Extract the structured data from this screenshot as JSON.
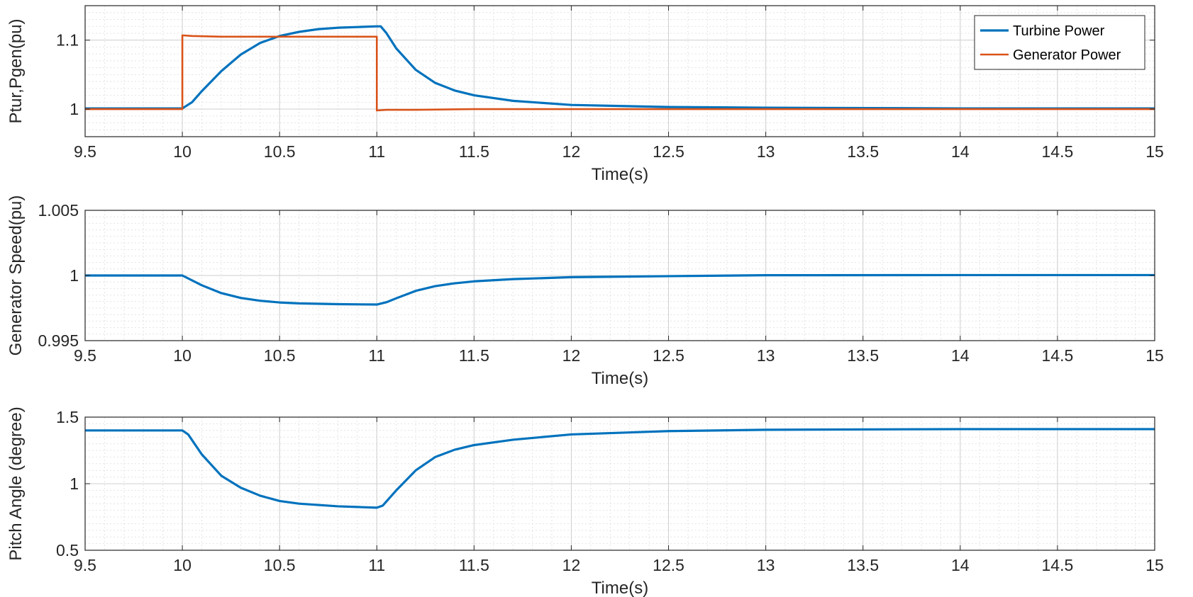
{
  "chart_data": [
    {
      "type": "line",
      "xlabel": "Time(s)",
      "ylabel": "Ptur,Pgen(pu)",
      "xlim": [
        9.5,
        15
      ],
      "ylim": [
        0.96,
        1.15
      ],
      "xticks": [
        9.5,
        10,
        10.5,
        11,
        11.5,
        12,
        12.5,
        13,
        13.5,
        14,
        14.5,
        15
      ],
      "xtick_labels": [
        "9.5",
        "10",
        "10.5",
        "11",
        "11.5",
        "12",
        "12.5",
        "13",
        "13.5",
        "14",
        "14.5",
        "15"
      ],
      "yticks": [
        1.0,
        1.1
      ],
      "ytick_labels": [
        "1",
        "1.1"
      ],
      "grid": true,
      "minor_grid": true,
      "legend": "top-right",
      "series": [
        {
          "name": "Turbine Power",
          "color": "#0072BD",
          "x": [
            9.5,
            10.0,
            10.05,
            10.1,
            10.2,
            10.3,
            10.4,
            10.5,
            10.6,
            10.7,
            10.8,
            10.9,
            11.0,
            11.02,
            11.05,
            11.1,
            11.2,
            11.3,
            11.4,
            11.5,
            11.7,
            12.0,
            12.5,
            13.0,
            14.0,
            15.0
          ],
          "y": [
            1.001,
            1.001,
            1.01,
            1.026,
            1.055,
            1.079,
            1.096,
            1.106,
            1.112,
            1.116,
            1.118,
            1.119,
            1.12,
            1.12,
            1.11,
            1.088,
            1.057,
            1.038,
            1.027,
            1.02,
            1.012,
            1.006,
            1.003,
            1.002,
            1.001,
            1.001
          ]
        },
        {
          "name": "Generator Power",
          "color": "#D95319",
          "x": [
            9.5,
            10.0,
            10.0,
            10.05,
            10.2,
            10.5,
            10.8,
            11.0,
            11.0,
            11.05,
            11.2,
            11.5,
            12.0,
            13.0,
            15.0
          ],
          "y": [
            1.0,
            1.0,
            1.107,
            1.106,
            1.105,
            1.105,
            1.105,
            1.105,
            0.998,
            0.999,
            0.999,
            1.0,
            1.0,
            1.0,
            1.0
          ]
        }
      ]
    },
    {
      "type": "line",
      "xlabel": "Time(s)",
      "ylabel": "Generator Speed(pu)",
      "xlim": [
        9.5,
        15
      ],
      "ylim": [
        0.995,
        1.005
      ],
      "xticks": [
        9.5,
        10,
        10.5,
        11,
        11.5,
        12,
        12.5,
        13,
        13.5,
        14,
        14.5,
        15
      ],
      "xtick_labels": [
        "9.5",
        "10",
        "10.5",
        "11",
        "11.5",
        "12",
        "12.5",
        "13",
        "13.5",
        "14",
        "14.5",
        "15"
      ],
      "yticks": [
        0.995,
        1.0,
        1.005
      ],
      "ytick_labels": [
        "0.995",
        "1",
        "1.005"
      ],
      "grid": true,
      "minor_grid": true,
      "series": [
        {
          "name": "",
          "color": "#0072BD",
          "x": [
            9.5,
            10.0,
            10.1,
            10.2,
            10.3,
            10.4,
            10.5,
            10.6,
            10.8,
            11.0,
            11.05,
            11.1,
            11.2,
            11.3,
            11.4,
            11.5,
            11.7,
            12.0,
            12.5,
            13.0,
            14.0,
            15.0
          ],
          "y": [
            1.0,
            1.0,
            0.99925,
            0.99865,
            0.99828,
            0.99806,
            0.99793,
            0.99786,
            0.9978,
            0.99777,
            0.99795,
            0.99825,
            0.99882,
            0.99918,
            0.9994,
            0.99955,
            0.99972,
            0.99987,
            0.99995,
            1.00002,
            1.00003,
            1.00003
          ]
        }
      ]
    },
    {
      "type": "line",
      "xlabel": "Time(s)",
      "ylabel": "Pitch Angle (degree)",
      "xlim": [
        9.5,
        15
      ],
      "ylim": [
        0.5,
        1.5
      ],
      "xticks": [
        9.5,
        10,
        10.5,
        11,
        11.5,
        12,
        12.5,
        13,
        13.5,
        14,
        14.5,
        15
      ],
      "xtick_labels": [
        "9.5",
        "10",
        "10.5",
        "11",
        "11.5",
        "12",
        "12.5",
        "13",
        "13.5",
        "14",
        "14.5",
        "15"
      ],
      "yticks": [
        0.5,
        1.0,
        1.5
      ],
      "ytick_labels": [
        "0.5",
        "1",
        "1.5"
      ],
      "grid": true,
      "minor_grid": true,
      "series": [
        {
          "name": "",
          "color": "#0072BD",
          "x": [
            9.5,
            10.0,
            10.03,
            10.1,
            10.2,
            10.3,
            10.4,
            10.5,
            10.6,
            10.7,
            10.8,
            10.9,
            11.0,
            11.03,
            11.1,
            11.2,
            11.3,
            11.4,
            11.5,
            11.7,
            12.0,
            12.5,
            13.0,
            14.0,
            15.0
          ],
          "y": [
            1.4,
            1.4,
            1.37,
            1.22,
            1.06,
            0.97,
            0.91,
            0.87,
            0.85,
            0.84,
            0.83,
            0.825,
            0.82,
            0.835,
            0.95,
            1.1,
            1.2,
            1.255,
            1.29,
            1.33,
            1.37,
            1.395,
            1.405,
            1.41,
            1.41
          ]
        }
      ]
    }
  ]
}
